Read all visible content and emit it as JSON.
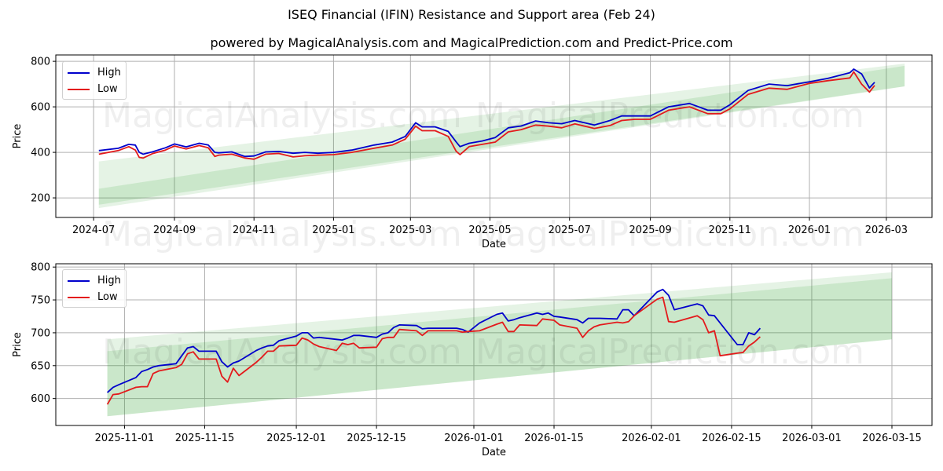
{
  "header": {
    "title": "ISEQ Financial (IFIN) Resistance and Support area (Feb 24)",
    "subtitle": "powered by MagicalAnalysis.com and MagicalPrediction.com and Predict-Price.com"
  },
  "watermarks": [
    "MagicalAnalysis.com",
    "MagicalPrediction.com"
  ],
  "colors": {
    "high": "#0000cc",
    "low": "#e31a1c",
    "band": "#2ca02c",
    "grid": "#b0b0b0"
  },
  "legend": {
    "high_label": "High",
    "low_label": "Low"
  },
  "chart_data": [
    {
      "type": "line",
      "title": "Full history",
      "xlabel": "Date",
      "ylabel": "Price",
      "ylim": [
        114,
        828
      ],
      "yticks": [
        200,
        400,
        600,
        800
      ],
      "xtick_labels": [
        "2024-07",
        "2024-09",
        "2024-11",
        "2025-01",
        "2025-03",
        "2025-05",
        "2025-07",
        "2025-09",
        "2025-11",
        "2026-01",
        "2026-03"
      ],
      "grid": true,
      "legend_position": "upper left",
      "x": [
        "2024-07-05",
        "2024-07-20",
        "2024-07-28",
        "2024-08-02",
        "2024-08-05",
        "2024-08-08",
        "2024-08-15",
        "2024-08-25",
        "2024-09-01",
        "2024-09-10",
        "2024-09-20",
        "2024-09-27",
        "2024-10-02",
        "2024-10-05",
        "2024-10-15",
        "2024-10-25",
        "2024-11-01",
        "2024-11-10",
        "2024-11-20",
        "2024-12-01",
        "2024-12-10",
        "2024-12-20",
        "2025-01-01",
        "2025-01-15",
        "2025-02-01",
        "2025-02-15",
        "2025-02-25",
        "2025-03-05",
        "2025-03-10",
        "2025-03-20",
        "2025-03-30",
        "2025-04-05",
        "2025-04-08",
        "2025-04-15",
        "2025-04-25",
        "2025-05-05",
        "2025-05-15",
        "2025-05-25",
        "2025-06-05",
        "2025-06-15",
        "2025-06-25",
        "2025-07-05",
        "2025-07-20",
        "2025-08-01",
        "2025-08-10",
        "2025-08-20",
        "2025-09-01",
        "2025-09-15",
        "2025-10-01",
        "2025-10-15",
        "2025-10-25",
        "2025-11-01",
        "2025-11-15",
        "2025-12-01",
        "2025-12-15",
        "2026-01-01",
        "2026-01-15",
        "2026-02-01",
        "2026-02-04",
        "2026-02-10",
        "2026-02-16",
        "2026-02-20"
      ],
      "series": [
        {
          "name": "High",
          "values": [
            408,
            418,
            435,
            432,
            400,
            392,
            402,
            420,
            437,
            424,
            440,
            432,
            400,
            398,
            402,
            382,
            384,
            402,
            404,
            396,
            400,
            396,
            400,
            410,
            432,
            445,
            470,
            530,
            512,
            512,
            492,
            446,
            425,
            440,
            450,
            465,
            508,
            516,
            538,
            530,
            526,
            540,
            520,
            540,
            560,
            560,
            560,
            600,
            615,
            585,
            585,
            609,
            672,
            700,
            693,
            710,
            725,
            750,
            766,
            745,
            683,
            708
          ]
        },
        {
          "name": "Low",
          "values": [
            392,
            408,
            425,
            410,
            378,
            375,
            394,
            410,
            428,
            415,
            430,
            420,
            382,
            388,
            392,
            375,
            370,
            392,
            395,
            380,
            385,
            388,
            390,
            400,
            418,
            432,
            458,
            515,
            495,
            495,
            470,
            405,
            390,
            425,
            435,
            445,
            490,
            500,
            520,
            515,
            508,
            525,
            505,
            518,
            540,
            545,
            545,
            585,
            600,
            570,
            570,
            591,
            655,
            682,
            677,
            703,
            715,
            727,
            754,
            700,
            665,
            694
          ]
        }
      ],
      "bands": [
        {
          "name": "Outer band (light)",
          "start": {
            "date": "2024-07-05",
            "low": 155,
            "high": 360
          },
          "end": {
            "date": "2026-03-15",
            "low": 690,
            "high": 790
          }
        },
        {
          "name": "Inner band",
          "start": {
            "date": "2024-07-05",
            "low": 170,
            "high": 240
          },
          "end": {
            "date": "2026-03-15",
            "low": 690,
            "high": 780
          }
        }
      ]
    },
    {
      "type": "line",
      "title": "Recent detail",
      "xlabel": "Date",
      "ylabel": "Price",
      "ylim": [
        559,
        805
      ],
      "yticks": [
        600,
        650,
        700,
        750,
        800
      ],
      "xtick_labels": [
        "2025-11-01",
        "2025-11-15",
        "2025-12-01",
        "2025-12-15",
        "2026-01-01",
        "2026-01-15",
        "2026-02-01",
        "2026-02-15",
        "2026-03-01",
        "2026-03-15"
      ],
      "grid": true,
      "legend_position": "upper left",
      "x": [
        "2025-10-29",
        "2025-10-30",
        "2025-10-31",
        "2025-11-03",
        "2025-11-04",
        "2025-11-05",
        "2025-11-06",
        "2025-11-07",
        "2025-11-10",
        "2025-11-11",
        "2025-11-12",
        "2025-11-13",
        "2025-11-14",
        "2025-11-17",
        "2025-11-18",
        "2025-11-19",
        "2025-11-20",
        "2025-11-21",
        "2025-11-24",
        "2025-11-25",
        "2025-11-26",
        "2025-11-27",
        "2025-11-28",
        "2025-12-01",
        "2025-12-02",
        "2025-12-03",
        "2025-12-04",
        "2025-12-05",
        "2025-12-08",
        "2025-12-09",
        "2025-12-10",
        "2025-12-11",
        "2025-12-12",
        "2025-12-15",
        "2025-12-16",
        "2025-12-17",
        "2025-12-18",
        "2025-12-19",
        "2025-12-22",
        "2025-12-23",
        "2025-12-24",
        "2025-12-29",
        "2025-12-30",
        "2025-12-31",
        "2026-01-02",
        "2026-01-05",
        "2026-01-06",
        "2026-01-07",
        "2026-01-08",
        "2026-01-09",
        "2026-01-12",
        "2026-01-13",
        "2026-01-14",
        "2026-01-15",
        "2026-01-16",
        "2026-01-19",
        "2026-01-20",
        "2026-01-21",
        "2026-01-22",
        "2026-01-23",
        "2026-01-26",
        "2026-01-27",
        "2026-01-28",
        "2026-01-29",
        "2026-02-02",
        "2026-02-03",
        "2026-02-04",
        "2026-02-05",
        "2026-02-09",
        "2026-02-10",
        "2026-02-11",
        "2026-02-12",
        "2026-02-13",
        "2026-02-16",
        "2026-02-17",
        "2026-02-18",
        "2026-02-19",
        "2026-02-20"
      ],
      "series": [
        {
          "name": "High",
          "values": [
            609,
            617,
            621,
            632,
            641,
            644,
            648,
            650,
            653,
            665,
            677,
            679,
            672,
            672,
            656,
            648,
            654,
            657,
            673,
            677,
            680,
            681,
            688,
            695,
            700,
            700,
            692,
            693,
            690,
            689,
            692,
            696,
            696,
            693,
            698,
            700,
            708,
            712,
            711,
            706,
            707,
            707,
            705,
            701,
            715,
            728,
            730,
            718,
            720,
            723,
            730,
            728,
            730,
            725,
            724,
            720,
            715,
            722,
            722,
            722,
            721,
            735,
            735,
            726,
            762,
            766,
            757,
            735,
            744,
            741,
            727,
            726,
            715,
            682,
            682,
            700,
            697,
            707
          ]
        },
        {
          "name": "Low",
          "values": [
            591,
            606,
            607,
            617,
            618,
            618,
            638,
            642,
            647,
            652,
            668,
            671,
            660,
            660,
            634,
            625,
            646,
            635,
            655,
            663,
            672,
            672,
            680,
            681,
            692,
            689,
            683,
            679,
            673,
            684,
            682,
            684,
            677,
            678,
            691,
            693,
            693,
            705,
            703,
            696,
            703,
            703,
            701,
            702,
            703,
            713,
            716,
            702,
            702,
            712,
            711,
            721,
            720,
            719,
            712,
            707,
            693,
            703,
            709,
            712,
            716,
            715,
            717,
            726,
            751,
            754,
            717,
            716,
            726,
            720,
            700,
            703,
            665,
            669,
            670,
            680,
            686,
            694
          ]
        }
      ],
      "bands": [
        {
          "name": "Outer band (light)",
          "start": {
            "date": "2025-10-29",
            "low": 573,
            "high": 690
          },
          "end": {
            "date": "2026-03-15",
            "low": 690,
            "high": 792
          }
        },
        {
          "name": "Inner band",
          "start": {
            "date": "2025-10-29",
            "low": 573,
            "high": 672
          },
          "end": {
            "date": "2026-03-15",
            "low": 690,
            "high": 783
          }
        }
      ]
    }
  ]
}
